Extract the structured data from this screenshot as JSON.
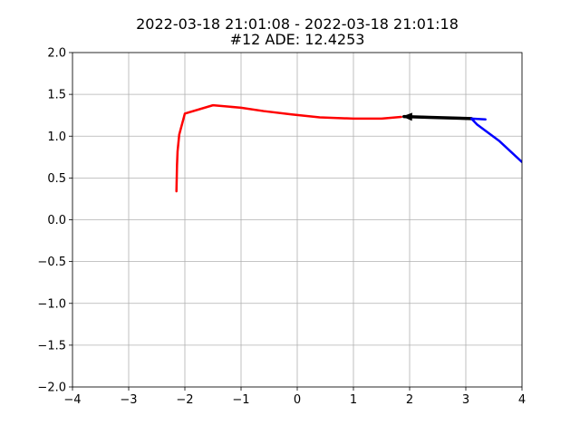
{
  "chart_data": {
    "type": "line",
    "title": "2022-03-18 21:01:08 - 2022-03-18 21:01:18",
    "subtitle": "#12 ADE: 12.4253",
    "xlabel": "",
    "ylabel": "",
    "xlim": [
      -4,
      4
    ],
    "ylim": [
      -2,
      2
    ],
    "xticks": [
      -4,
      -3,
      -2,
      -1,
      0,
      1,
      2,
      3,
      4
    ],
    "yticks": [
      -2.0,
      -1.5,
      -1.0,
      -0.5,
      0.0,
      0.5,
      1.0,
      1.5,
      2.0
    ],
    "xtick_labels": [
      "−4",
      "−3",
      "−2",
      "−1",
      "0",
      "1",
      "2",
      "3",
      "4"
    ],
    "ytick_labels": [
      "−2.0",
      "−1.5",
      "−1.0",
      "−0.5",
      "0.0",
      "0.5",
      "1.0",
      "1.5",
      "2.0"
    ],
    "grid": true,
    "series": [
      {
        "color": "#ff0000",
        "x": [
          -2.15,
          -2.14,
          -2.13,
          -2.1,
          -2.0,
          -1.5,
          -1.0,
          -0.6,
          -0.1,
          0.4,
          1.0,
          1.5,
          1.85
        ],
        "y": [
          0.34,
          0.65,
          0.82,
          1.02,
          1.27,
          1.37,
          1.34,
          1.3,
          1.26,
          1.225,
          1.21,
          1.21,
          1.23
        ]
      },
      {
        "color": "#000000",
        "x": [
          3.1,
          2.35,
          1.9
        ],
        "y": [
          1.21,
          1.225,
          1.235
        ],
        "arrow": true
      },
      {
        "color": "#0000ff",
        "x": [
          3.35,
          3.1,
          3.2,
          3.6,
          4.0
        ],
        "y": [
          1.2,
          1.21,
          1.14,
          0.94,
          0.69
        ]
      }
    ]
  }
}
